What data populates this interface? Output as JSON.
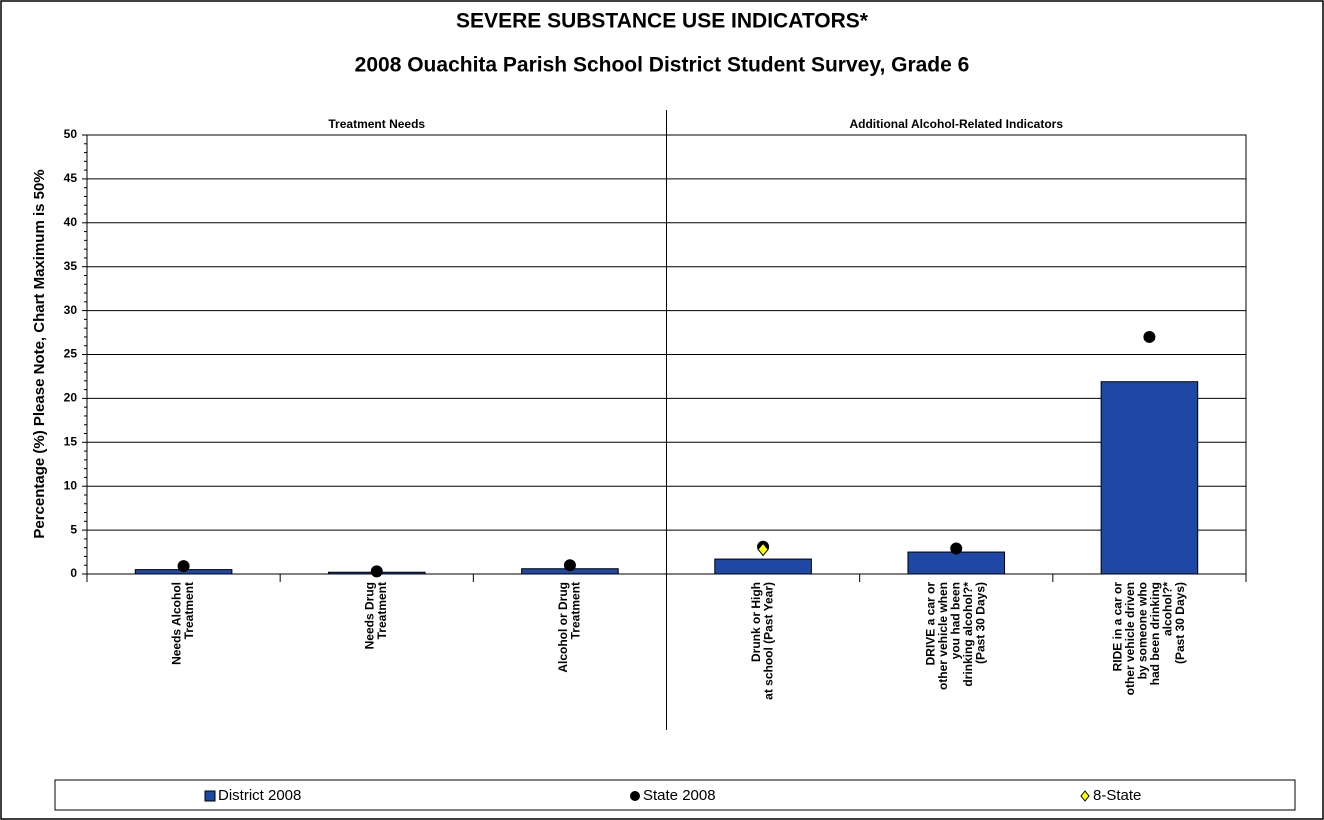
{
  "chart_data": {
    "type": "bar",
    "title": "SEVERE SUBSTANCE USE INDICATORS*",
    "subtitle": "2008 Ouachita Parish School District Student Survey, Grade 6",
    "y_label": "Percentage (%)  Please Note, Chart Maximum is 50%",
    "sections": [
      "Treatment Needs",
      "Additional Alcohol-Related Indicators"
    ],
    "categories": [
      [
        "Needs Alcohol",
        "Treatment"
      ],
      [
        "Needs Drug",
        "Treatment"
      ],
      [
        "Alcohol or Drug",
        "Treatment"
      ],
      [
        "Drunk or High",
        "at school (Past Year)"
      ],
      [
        "DRIVE a car or",
        "other vehicle when",
        "you had been",
        "drinking alcohol?*",
        "(Past 30 Days)"
      ],
      [
        "RIDE in a car or",
        "other vehicle driven",
        "by someone who",
        "had been drinking",
        "alcohol?*",
        "(Past 30 Days)"
      ]
    ],
    "series": [
      {
        "name": "District 2008",
        "color": "#1f48a6",
        "marker": "bar",
        "values": [
          0.5,
          0.2,
          0.6,
          1.7,
          2.5,
          21.9
        ]
      },
      {
        "name": "State 2008",
        "color": "#000000",
        "marker": "circle",
        "values": [
          0.9,
          0.3,
          1.0,
          3.1,
          2.9,
          27.0
        ]
      },
      {
        "name": "8-State",
        "color": "#ffff00",
        "marker": "diamond",
        "values": [
          null,
          null,
          null,
          2.8,
          null,
          null
        ]
      }
    ],
    "ylim": [
      0,
      50
    ],
    "yticks": [
      0,
      5,
      10,
      15,
      20,
      25,
      30,
      35,
      40,
      45,
      50
    ],
    "grid": true,
    "legend": "bottom"
  }
}
